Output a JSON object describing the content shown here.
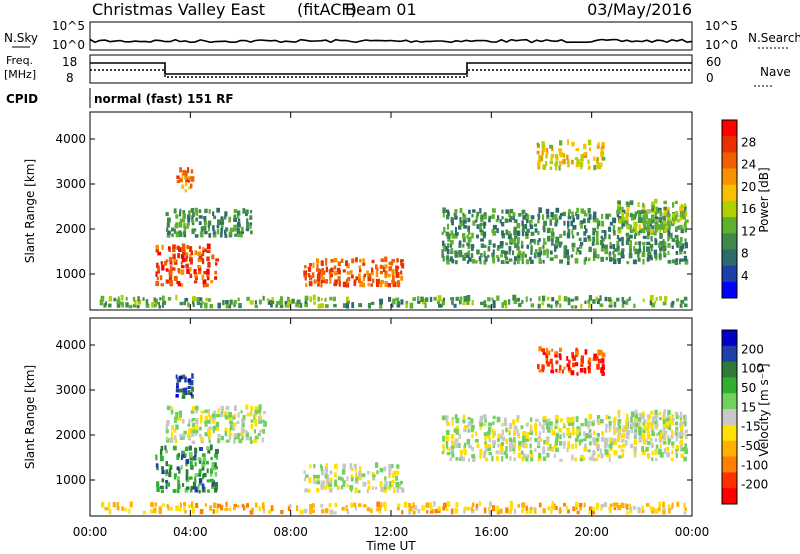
{
  "header": {
    "station": "Christmas Valley East",
    "mode": "(fitACF)",
    "beam": "Beam 01",
    "date": "03/May/2016"
  },
  "noise_panel": {
    "left_label": "N.Sky",
    "right_label": "N.Search",
    "left_ticks": [
      "10^5",
      "10^0"
    ],
    "right_ticks": [
      "10^5",
      "10^0"
    ]
  },
  "freq_panel": {
    "left_label_1": "Freq.",
    "left_label_2": "[MHz]",
    "right_label": "Nave",
    "left_ticks": [
      "18",
      "8"
    ],
    "right_ticks": [
      "60",
      "0"
    ]
  },
  "cpid": {
    "label": "CPID",
    "text": "normal (fast) 151 RF"
  },
  "colors": {
    "power_scale": [
      "#0000ff",
      "#1f3fa8",
      "#2f6a6a",
      "#3f8a4a",
      "#5fb030",
      "#b0d000",
      "#f8c000",
      "#f89000",
      "#f06000",
      "#e83000",
      "#ff0000"
    ],
    "velocity_scale": [
      "#0000c8",
      "#1f40a8",
      "#2f7a3a",
      "#30b030",
      "#70d060",
      "#c8c8c8",
      "#ffe000",
      "#ffb000",
      "#ff8000",
      "#ff3000",
      "#ff0000"
    ]
  },
  "chart_data": [
    {
      "type": "heatmap",
      "title": "Power",
      "xlabel": "Time UT",
      "ylabel": "Slant Range [km]",
      "x_ticks": [
        "00:00",
        "04:00",
        "08:00",
        "12:00",
        "16:00",
        "20:00",
        "00:00"
      ],
      "y_ticks": [
        "1000",
        "2000",
        "3000",
        "4000"
      ],
      "ylim": [
        200,
        4600
      ],
      "colorbar_label": "Power [dB]",
      "colorbar_ticks": [
        "4",
        "8",
        "12",
        "16",
        "20",
        "24",
        "28"
      ],
      "features": [
        {
          "t": [
            2.6,
            5.1
          ],
          "r": [
            700,
            1600
          ],
          "level": 0.85
        },
        {
          "t": [
            3.4,
            4.1
          ],
          "r": [
            2800,
            3300
          ],
          "level": 0.75
        },
        {
          "t": [
            8.5,
            12.5
          ],
          "r": [
            700,
            1300
          ],
          "level": 0.8
        },
        {
          "t": [
            0.2,
            23.8
          ],
          "r": [
            230,
            450
          ],
          "level": 0.35
        },
        {
          "t": [
            3.0,
            6.5
          ],
          "r": [
            1800,
            2400
          ],
          "level": 0.3
        },
        {
          "t": [
            14.0,
            23.8
          ],
          "r": [
            1200,
            2400
          ],
          "level": 0.3
        },
        {
          "t": [
            17.8,
            20.5
          ],
          "r": [
            3300,
            3900
          ],
          "level": 0.55
        },
        {
          "t": [
            21.0,
            23.8
          ],
          "r": [
            1900,
            2600
          ],
          "level": 0.45
        }
      ]
    },
    {
      "type": "heatmap",
      "title": "Velocity",
      "xlabel": "Time UT",
      "ylabel": "Slant Range [km]",
      "x_ticks": [
        "00:00",
        "04:00",
        "08:00",
        "12:00",
        "16:00",
        "20:00",
        "00:00"
      ],
      "y_ticks": [
        "1000",
        "2000",
        "3000",
        "4000"
      ],
      "ylim": [
        200,
        4600
      ],
      "colorbar_label": "Velocity [m s⁻¹]",
      "colorbar_ticks": [
        "200",
        "100",
        "50",
        "15",
        "-15",
        "-50",
        "-100",
        "-200"
      ],
      "features": [
        {
          "t": [
            2.6,
            5.1
          ],
          "r": [
            700,
            1700
          ],
          "v": 0.25
        },
        {
          "t": [
            3.4,
            4.1
          ],
          "r": [
            2800,
            3300
          ],
          "v": 0.1
        },
        {
          "t": [
            8.5,
            12.5
          ],
          "r": [
            700,
            1300
          ],
          "v": 0.5
        },
        {
          "t": [
            0.2,
            23.8
          ],
          "r": [
            230,
            450
          ],
          "v": 0.65
        },
        {
          "t": [
            3.0,
            7.0
          ],
          "r": [
            1800,
            2600
          ],
          "v": 0.5
        },
        {
          "t": [
            14.0,
            23.8
          ],
          "r": [
            1400,
            2400
          ],
          "v": 0.5
        },
        {
          "t": [
            17.8,
            20.5
          ],
          "r": [
            3300,
            3900
          ],
          "v": 0.95
        },
        {
          "t": [
            21.0,
            23.8
          ],
          "r": [
            1900,
            2500
          ],
          "v": 0.5
        }
      ]
    }
  ]
}
